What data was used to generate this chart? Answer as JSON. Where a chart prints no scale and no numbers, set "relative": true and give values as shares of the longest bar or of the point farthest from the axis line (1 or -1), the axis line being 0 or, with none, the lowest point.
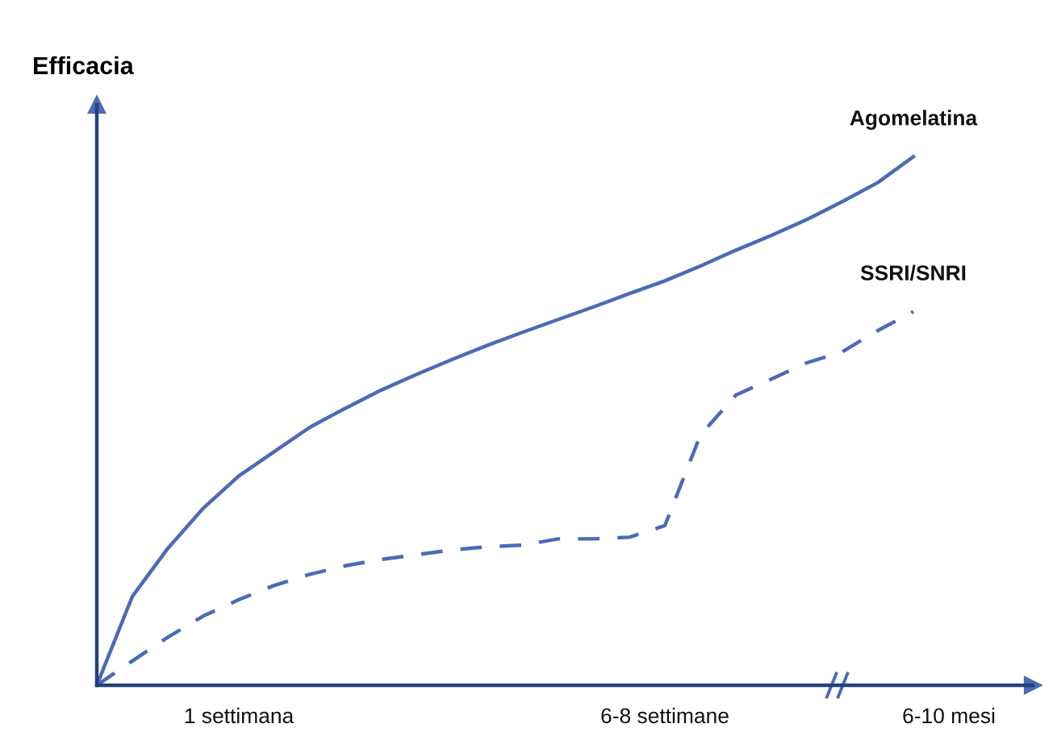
{
  "chart_data": {
    "type": "line",
    "relative": true,
    "ylabel": "Efficacia",
    "categories": [
      null,
      null,
      null,
      null,
      "1 settimana",
      null,
      null,
      null,
      null,
      null,
      null,
      null,
      null,
      null,
      null,
      null,
      "6-8 settimane",
      null,
      null,
      null,
      null,
      null,
      null,
      null,
      "6-10 mesi"
    ],
    "series": [
      {
        "name": "Agomelatina",
        "color": "#4a6bb5",
        "line_style": "solid",
        "values": [
          0,
          0.168,
          0.259,
          0.335,
          0.396,
          0.442,
          0.488,
          0.524,
          0.558,
          0.588,
          0.616,
          0.643,
          0.668,
          0.692,
          0.716,
          0.741,
          0.765,
          0.793,
          0.823,
          0.851,
          0.881,
          0.915,
          0.951,
          1,
          null
        ]
      },
      {
        "name": "SSRI/SNRI",
        "color": "#4a6bb5",
        "line_style": "dashed",
        "values": [
          0,
          0.046,
          0.091,
          0.131,
          0.162,
          0.189,
          0.21,
          0.226,
          0.238,
          0.247,
          0.256,
          0.262,
          0.265,
          0.277,
          0.277,
          0.28,
          0.302,
          0.473,
          0.549,
          0.579,
          0.61,
          0.631,
          0.671,
          0.707,
          null
        ]
      }
    ]
  }
}
